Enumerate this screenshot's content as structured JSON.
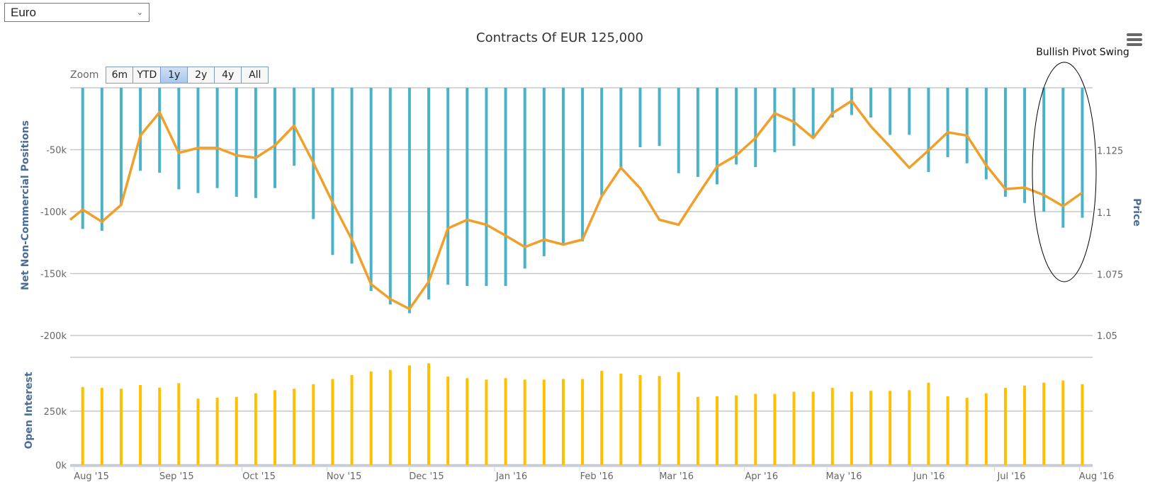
{
  "selector": {
    "value": "Euro"
  },
  "zoom": {
    "label": "Zoom",
    "buttons": [
      "6m",
      "YTD",
      "1y",
      "2y",
      "4y",
      "All"
    ],
    "active": "1y"
  },
  "menu": {
    "icon": "hamburger-menu-icon"
  },
  "colors": {
    "net": "#4bb3c9",
    "price": "#f0a02a",
    "open_interest": "#ffc000",
    "axis_title": "#4a6d99",
    "grid": "#c8c8c8"
  },
  "chart_data": {
    "type": "bar+line",
    "title": "Contracts Of EUR 125,000",
    "start_date": "2015-08-04",
    "interval_days": 7,
    "x_tick_labels": [
      "Aug '15",
      "Sep '15",
      "Oct '15",
      "Nov '15",
      "Dec '15",
      "Jan '16",
      "Feb '16",
      "Mar '16",
      "Apr '16",
      "May '16",
      "Jun '16",
      "Jul '16",
      "Aug '16"
    ],
    "annotation": {
      "text": "Bullish Pivot Swing",
      "weeks": [
        49,
        52
      ]
    },
    "panels": [
      {
        "ylabel": "Net Non-Commercial Positions",
        "ylim": [
          -200000,
          0
        ],
        "y_ticks": [
          0,
          -50000,
          -100000,
          -150000,
          -200000
        ],
        "y_tick_labels": [
          "",
          "-50k",
          "-100k",
          "-150k",
          "-200k"
        ],
        "series": {
          "name": "Net Non-Commercial Positions",
          "type": "bar",
          "values": [
            -114000,
            -115500,
            -94000,
            -67000,
            -68600,
            -82000,
            -85000,
            -81000,
            -88000,
            -89000,
            -81000,
            -63000,
            -106000,
            -135000,
            -142000,
            -164000,
            -175000,
            -182000,
            -171000,
            -159000,
            -160000,
            -160000,
            -160000,
            -146000,
            -136000,
            -126000,
            -124000,
            -87000,
            -64000,
            -48000,
            -47000,
            -69000,
            -72000,
            -78000,
            -62000,
            -64000,
            -52000,
            -47000,
            -40000,
            -24000,
            -22000,
            -24000,
            -38000,
            -38000,
            -68000,
            -56000,
            -61000,
            -74000,
            -88000,
            -93000,
            -100000,
            -113000,
            -105000
          ]
        },
        "price_axis": {
          "ylabel": "Price",
          "ylim": [
            1.05,
            1.15
          ],
          "y_ticks": [
            1.125,
            1.1,
            1.075,
            1.05
          ],
          "y_tick_labels": [
            "1.125",
            "1.1",
            "1.075",
            "1.05"
          ],
          "series": {
            "name": "Price",
            "type": "line",
            "start_value": 1.097,
            "values": [
              1.1011,
              1.0962,
              1.103,
              1.131,
              1.1404,
              1.124,
              1.126,
              1.126,
              1.123,
              1.122,
              1.127,
              1.135,
              1.12,
              1.104,
              1.089,
              1.071,
              1.065,
              1.061,
              1.072,
              1.0935,
              1.097,
              1.095,
              1.0906,
              1.086,
              1.089,
              1.087,
              1.089,
              1.1065,
              1.118,
              1.1097,
              1.097,
              1.095,
              1.107,
              1.1185,
              1.123,
              1.13,
              1.14,
              1.1365,
              1.13,
              1.14,
              1.145,
              1.1347,
              1.1265,
              1.118,
              1.125,
              1.1323,
              1.131,
              1.119,
              1.1094,
              1.11,
              1.107,
              1.1025,
              1.108
            ]
          }
        }
      },
      {
        "ylabel": "Open Interest",
        "ylim": [
          0,
          500000
        ],
        "y_ticks": [
          0,
          250000,
          500000
        ],
        "y_tick_labels": [
          "0k",
          "250k",
          ""
        ],
        "series": {
          "name": "Open Interest",
          "type": "bar",
          "values": [
            362000,
            358000,
            354000,
            371000,
            359000,
            380000,
            308000,
            312000,
            316000,
            333000,
            347000,
            354000,
            375000,
            399000,
            417000,
            434000,
            441000,
            462000,
            472000,
            410000,
            403000,
            396000,
            403000,
            396000,
            396000,
            399000,
            399000,
            437000,
            424000,
            417000,
            413000,
            431000,
            316000,
            319000,
            323000,
            330000,
            330000,
            340000,
            340000,
            358000,
            340000,
            344000,
            344000,
            347000,
            382000,
            319000,
            312000,
            333000,
            358000,
            368000,
            382000,
            392000,
            375000
          ]
        }
      }
    ]
  }
}
